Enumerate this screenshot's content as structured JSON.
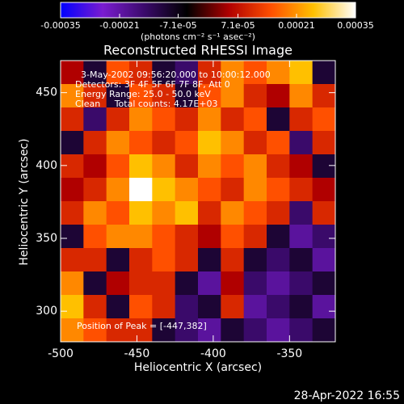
{
  "chart_data": {
    "type": "heatmap",
    "title": "Reconstructed RHESSI Image",
    "xlabel": "Heliocentric X (arcsec)",
    "ylabel": "Heliocentric Y (arcsec)",
    "colorbar_label": "(photons cm⁻² s⁻¹ asec⁻²)",
    "annotations": [
      "3-May-2002 09:56:20.000 to 10:00:12.000",
      "Detectors: 3F 4F 5F 6F 7F 8F, Att 0",
      "Energy Range: 25.0 - 50.0 keV",
      "Clean     Total counts: 4.17E+03",
      "Position of Peak = [-447,382]"
    ],
    "footer": "28-Apr-2022 16:55",
    "xlim": [
      -500,
      -320
    ],
    "ylim": [
      279,
      472
    ],
    "xticks": [
      -500,
      -450,
      -400,
      -350
    ],
    "yticks": [
      300,
      350,
      400,
      450
    ],
    "zlim": [
      -0.00035,
      0.00035
    ],
    "zticks": [
      -0.00035,
      -0.00021,
      {
        "value": -7.1e-05,
        "label": "-7.1e-05"
      },
      {
        "value": 7.1e-05,
        "label": "7.1e-05"
      },
      0.00021,
      0.00035
    ],
    "colormap": [
      "#0000ff",
      "#7a1cd0",
      "#3a0a6a",
      "#000000",
      "#b00000",
      "#ff5000",
      "#ffc000",
      "#ffffff"
    ],
    "z": [
      [
        5e-05,
        -0.0001,
        0.00015,
        0.0001,
        -0.0001,
        -0.00015,
        0.0001,
        0.0002,
        0.00015,
        0.0002,
        0.00025,
        -0.0001
      ],
      [
        0.0002,
        0.0001,
        -0.0001,
        0.00015,
        0.0001,
        -0.0001,
        0.00015,
        0.0002,
        0.0001,
        5e-05,
        0.0002,
        0.0001
      ],
      [
        0.0001,
        -0.00015,
        0.0001,
        0.0002,
        0.00015,
        0.0001,
        0.0002,
        0.0001,
        0.00015,
        -0.0001,
        0.0001,
        0.00015
      ],
      [
        -0.0001,
        0.0001,
        0.0002,
        0.00015,
        0.0001,
        0.00015,
        0.00025,
        0.0002,
        0.0001,
        0.00015,
        -0.00015,
        0.0001
      ],
      [
        0.0001,
        5e-05,
        0.00015,
        0.00025,
        0.0002,
        0.0001,
        0.0002,
        0.00015,
        0.0002,
        0.0001,
        5e-05,
        -0.0001
      ],
      [
        5e-05,
        0.0001,
        0.0002,
        0.00035,
        0.00025,
        0.0002,
        0.00015,
        0.0001,
        0.0002,
        0.00015,
        0.0001,
        5e-05
      ],
      [
        0.0001,
        0.0002,
        0.00015,
        0.00025,
        0.0002,
        0.00025,
        0.0001,
        0.0002,
        0.00015,
        0.0001,
        -0.00015,
        0.0001
      ],
      [
        -0.0001,
        0.00015,
        0.0002,
        0.0002,
        0.00015,
        0.0001,
        5e-05,
        0.00015,
        0.0001,
        -0.0001,
        -0.0002,
        -0.00015
      ],
      [
        0.0001,
        0.0001,
        -0.0001,
        0.0001,
        0.00015,
        0.0001,
        -0.0001,
        0.0001,
        -0.0001,
        -0.00015,
        -0.0001,
        -0.0002
      ],
      [
        0.0002,
        -0.0001,
        5e-05,
        0.0001,
        0.0001,
        -0.0001,
        -0.0002,
        5e-05,
        -0.00015,
        -0.0002,
        -0.00015,
        -0.0001
      ],
      [
        0.00025,
        0.0001,
        -0.0001,
        0.00015,
        0.0001,
        -0.00015,
        -0.0001,
        0.0001,
        -0.0002,
        -0.00015,
        -0.0001,
        -0.0002
      ],
      [
        0.0002,
        0.00015,
        0.0001,
        0.0001,
        -0.0001,
        -0.00015,
        -0.0002,
        -0.0001,
        -0.00015,
        -0.0002,
        -0.00015,
        -0.0001
      ]
    ]
  }
}
